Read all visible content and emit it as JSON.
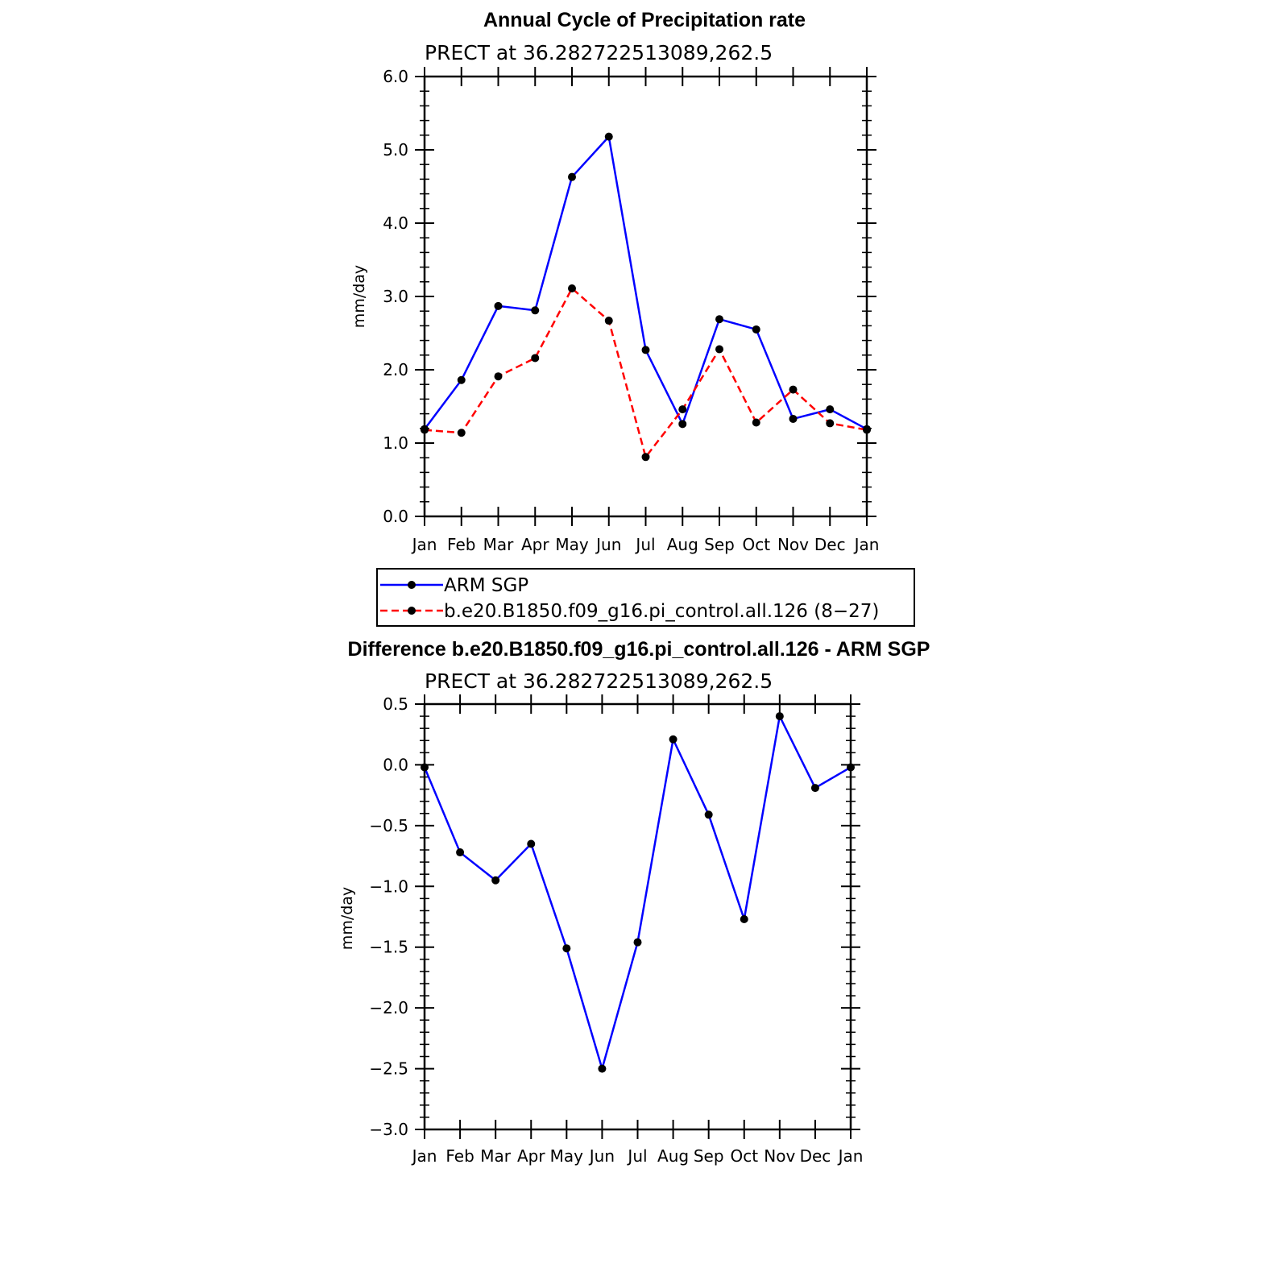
{
  "chart_data": [
    {
      "type": "line",
      "title": "Annual Cycle of Precipitation rate",
      "subtitle": "PRECT at 36.282722513089,262.5",
      "ylabel": "mm/day",
      "xlabel": "",
      "categories": [
        "Jan",
        "Feb",
        "Mar",
        "Apr",
        "May",
        "Jun",
        "Jul",
        "Aug",
        "Sep",
        "Oct",
        "Nov",
        "Dec",
        "Jan"
      ],
      "ylim": [
        0,
        6
      ],
      "yticks": [
        "0.0",
        "1.0",
        "2.0",
        "3.0",
        "4.0",
        "5.0",
        "6.0"
      ],
      "series": [
        {
          "name": "ARM SGP",
          "color": "#0000ff",
          "dashed": false,
          "values": [
            1.19,
            1.86,
            2.87,
            2.81,
            4.63,
            5.18,
            2.27,
            1.26,
            2.69,
            2.55,
            1.33,
            1.46,
            1.19
          ]
        },
        {
          "name": "b.e20.B1850.f09_g16.pi_control.all.126 (8−27)",
          "color": "#ff0000",
          "dashed": true,
          "values": [
            1.18,
            1.14,
            1.91,
            2.16,
            3.11,
            2.67,
            0.81,
            1.46,
            2.28,
            1.28,
            1.73,
            1.27,
            1.18
          ]
        }
      ],
      "legend_position": "below"
    },
    {
      "type": "line",
      "title": "Difference b.e20.B1850.f09_g16.pi_control.all.126 - ARM SGP",
      "subtitle": "PRECT at 36.282722513089,262.5",
      "ylabel": "mm/day",
      "xlabel": "",
      "categories": [
        "Jan",
        "Feb",
        "Mar",
        "Apr",
        "May",
        "Jun",
        "Jul",
        "Aug",
        "Sep",
        "Oct",
        "Nov",
        "Dec",
        "Jan"
      ],
      "ylim": [
        -3,
        0.5
      ],
      "yticks": [
        "−3.0",
        "−2.5",
        "−2.0",
        "−1.5",
        "−1.0",
        "−0.5",
        "0.0",
        "0.5"
      ],
      "series": [
        {
          "color": "#0000ff",
          "dashed": false,
          "values": [
            -0.02,
            -0.72,
            -0.95,
            -0.65,
            -1.51,
            -2.5,
            -1.46,
            0.21,
            -0.41,
            -1.27,
            0.4,
            -0.19,
            -0.02
          ]
        }
      ]
    }
  ]
}
